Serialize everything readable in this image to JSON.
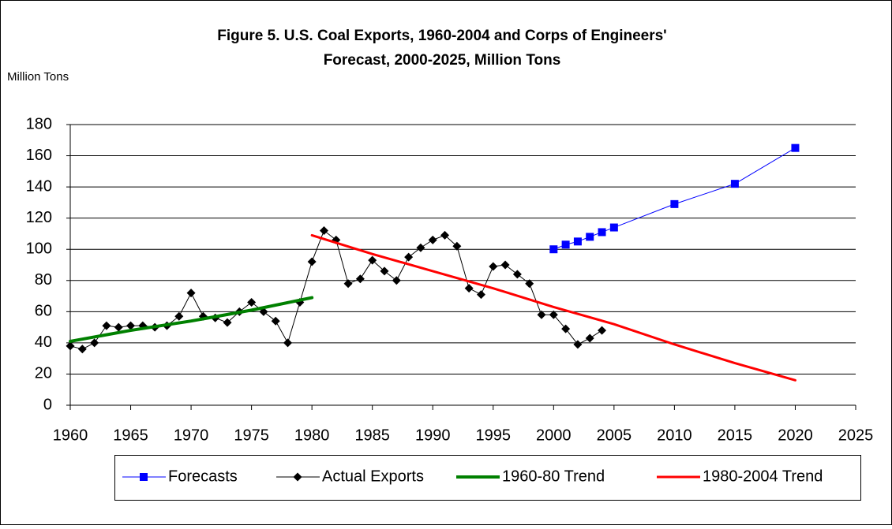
{
  "chart_data": {
    "type": "line",
    "title": [
      "Figure 5. U.S. Coal Exports, 1960-2004 and Corps of Engineers'",
      "Forecast, 2000-2025, Million Tons"
    ],
    "y_label": "Million Tons",
    "xlim": [
      1960,
      2025
    ],
    "xticks": [
      1960,
      1965,
      1970,
      1975,
      1980,
      1985,
      1990,
      1995,
      2000,
      2005,
      2010,
      2015,
      2020,
      2025
    ],
    "ylim": [
      0,
      180
    ],
    "yticks": [
      0,
      20,
      40,
      60,
      80,
      100,
      120,
      140,
      160,
      180
    ],
    "grid": true,
    "legend": "bottom",
    "series": [
      {
        "name": "Forecasts",
        "color": "#0000ff",
        "marker": "square",
        "line_width": 1,
        "x": [
          2000,
          2001,
          2002,
          2003,
          2004,
          2005,
          2010,
          2015,
          2020
        ],
        "values": [
          100,
          103,
          105,
          108,
          111,
          114,
          129,
          142,
          165
        ]
      },
      {
        "name": "Actual Exports",
        "color": "#000000",
        "marker": "diamond",
        "line_width": 1,
        "x": [
          1960,
          1961,
          1962,
          1963,
          1964,
          1965,
          1966,
          1967,
          1968,
          1969,
          1970,
          1971,
          1972,
          1973,
          1974,
          1975,
          1976,
          1977,
          1978,
          1979,
          1980,
          1981,
          1982,
          1983,
          1984,
          1985,
          1986,
          1987,
          1988,
          1989,
          1990,
          1991,
          1992,
          1993,
          1994,
          1995,
          1996,
          1997,
          1998,
          1999,
          2000,
          2001,
          2002,
          2003,
          2004
        ],
        "values": [
          38,
          36,
          40,
          51,
          50,
          51,
          51,
          50,
          51,
          57,
          72,
          57,
          56,
          53,
          60,
          66,
          60,
          54,
          40,
          66,
          92,
          112,
          106,
          78,
          81,
          93,
          86,
          80,
          95,
          101,
          106,
          109,
          102,
          75,
          71,
          89,
          90,
          84,
          78,
          58,
          58,
          49,
          39,
          43,
          48
        ]
      },
      {
        "name": "1960-80 Trend",
        "color": "#008000",
        "marker": "none",
        "line_width": 4,
        "x": [
          1960,
          1965,
          1970,
          1975,
          1980
        ],
        "values": [
          41,
          48,
          54,
          61,
          69
        ]
      },
      {
        "name": "1980-2004 Trend",
        "color": "#ff0000",
        "marker": "none",
        "line_width": 3,
        "x": [
          1980,
          1985,
          1990,
          1995,
          2000,
          2005,
          2010,
          2015,
          2020
        ],
        "values": [
          109,
          97,
          86,
          75,
          63,
          52,
          39,
          27,
          16
        ]
      }
    ]
  }
}
